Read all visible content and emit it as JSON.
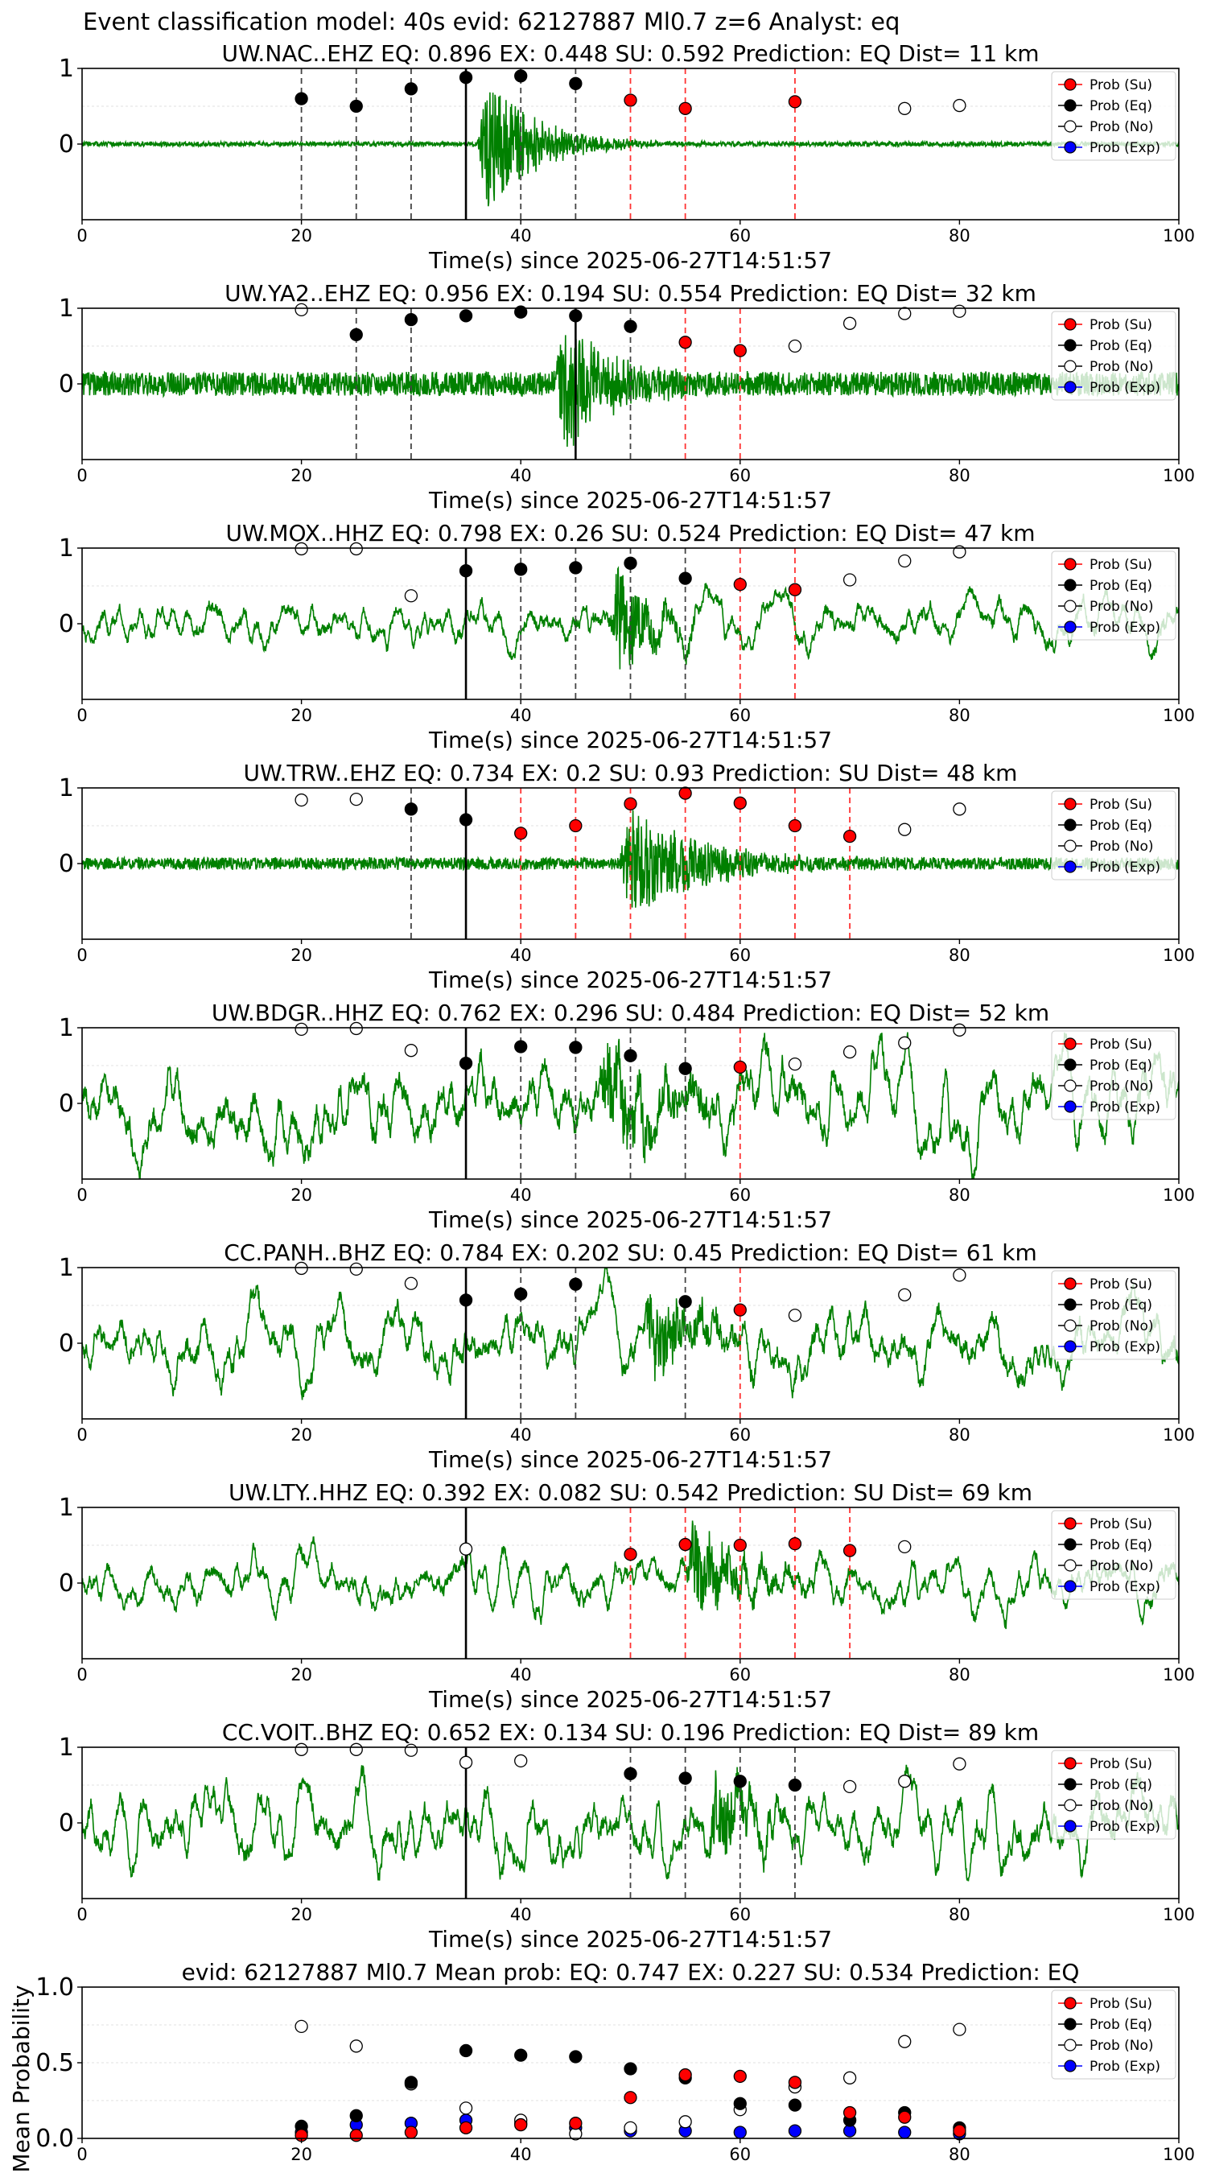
{
  "figure": {
    "suptitle": "Event classification model: 40s evid: 62127887 Ml0.7 z=6 Analyst: eq"
  },
  "legend": {
    "su": "Prob (Su)",
    "eq": "Prob (Eq)",
    "no": "Prob (No)",
    "exp": "Prob (Exp)"
  },
  "colors": {
    "su": "#ff0000",
    "eq": "#000000",
    "no": "#ffffff",
    "exp": "#0000ff",
    "waveform": "#008000",
    "origin_line": "#000000",
    "eq_window_line": "#444444",
    "su_window_line": "#ff3333"
  },
  "chart_data": [
    {
      "type": "line",
      "title": "UW.NAC..EHZ   EQ: 0.896  EX: 0.448  SU: 0.592   Prediction: EQ    Dist= 11 km",
      "xlabel": "Time(s) since 2025-06-27T14:51:57",
      "xlim": [
        0,
        100
      ],
      "ylim": [
        -1,
        1
      ],
      "x_ticks": [
        "0",
        "20",
        "40",
        "60",
        "80",
        "100"
      ],
      "y_ticks": [
        "0",
        "1"
      ],
      "legend_position": "upper right",
      "origin_time": 35,
      "waveform": {
        "noise": 0.015,
        "events": [
          {
            "t": 37,
            "amp": 0.9,
            "dur": 10,
            "seed": 1
          }
        ]
      },
      "eq_lines": [
        20,
        25,
        30,
        40,
        45
      ],
      "su_lines": [
        50,
        55,
        65
      ],
      "su_points": [
        [
          50,
          0.58
        ],
        [
          55,
          0.47
        ],
        [
          65,
          0.56
        ]
      ],
      "eq_points": [
        [
          20,
          0.6
        ],
        [
          25,
          0.5
        ],
        [
          30,
          0.73
        ],
        [
          35,
          0.88
        ],
        [
          40,
          0.9
        ],
        [
          45,
          0.8
        ]
      ],
      "no_points": [
        [
          75,
          0.47
        ],
        [
          80,
          0.51
        ]
      ],
      "exp_points": []
    },
    {
      "type": "line",
      "title": "UW.YA2..EHZ   EQ: 0.956  EX: 0.194  SU: 0.554   Prediction: EQ    Dist= 32 km",
      "xlabel": "Time(s) since 2025-06-27T14:51:57",
      "xlim": [
        0,
        100
      ],
      "ylim": [
        -1,
        1
      ],
      "x_ticks": [
        "0",
        "20",
        "40",
        "60",
        "80",
        "100"
      ],
      "y_ticks": [
        "0",
        "1"
      ],
      "legend_position": "upper right",
      "origin_time": 45,
      "waveform": {
        "noise": 0.08,
        "events": [
          {
            "t": 44,
            "amp": 0.85,
            "dur": 9,
            "seed": 2
          }
        ]
      },
      "eq_lines": [
        25,
        30,
        45,
        50
      ],
      "su_lines": [
        55,
        60
      ],
      "su_points": [
        [
          55,
          0.55
        ],
        [
          60,
          0.44
        ]
      ],
      "eq_points": [
        [
          25,
          0.65
        ],
        [
          30,
          0.85
        ],
        [
          35,
          0.9
        ],
        [
          40,
          0.95
        ],
        [
          45,
          0.9
        ],
        [
          50,
          0.76
        ]
      ],
      "no_points": [
        [
          20,
          0.98
        ],
        [
          65,
          0.5
        ],
        [
          70,
          0.8
        ],
        [
          75,
          0.93
        ],
        [
          80,
          0.96
        ]
      ],
      "exp_points": []
    },
    {
      "type": "line",
      "title": "UW.MOX..HHZ   EQ: 0.798  EX: 0.26  SU: 0.524   Prediction: EQ    Dist= 47 km",
      "xlabel": "Time(s) since 2025-06-27T14:51:57",
      "xlim": [
        0,
        100
      ],
      "ylim": [
        -1,
        1
      ],
      "x_ticks": [
        "0",
        "20",
        "40",
        "60",
        "80",
        "100"
      ],
      "y_ticks": [
        "0",
        "1"
      ],
      "legend_position": "upper right",
      "origin_time": 35,
      "waveform": {
        "noise": 0.2,
        "events": [
          {
            "t": 49,
            "amp": 0.7,
            "dur": 6,
            "seed": 3
          }
        ]
      },
      "eq_lines": [
        40,
        45,
        50,
        55
      ],
      "su_lines": [
        60,
        65
      ],
      "su_points": [
        [
          60,
          0.52
        ],
        [
          65,
          0.45
        ]
      ],
      "eq_points": [
        [
          35,
          0.7
        ],
        [
          40,
          0.72
        ],
        [
          45,
          0.74
        ],
        [
          50,
          0.8
        ],
        [
          55,
          0.6
        ]
      ],
      "no_points": [
        [
          20,
          0.99
        ],
        [
          25,
          0.99
        ],
        [
          30,
          0.37
        ],
        [
          70,
          0.58
        ],
        [
          75,
          0.83
        ],
        [
          80,
          0.95
        ]
      ],
      "exp_points": []
    },
    {
      "type": "line",
      "title": "UW.TRW..EHZ   EQ: 0.734  EX: 0.2  SU: 0.93   Prediction: SU    Dist= 48 km",
      "xlabel": "Time(s) since 2025-06-27T14:51:57",
      "xlim": [
        0,
        100
      ],
      "ylim": [
        -1,
        1
      ],
      "x_ticks": [
        "0",
        "20",
        "40",
        "60",
        "80",
        "100"
      ],
      "y_ticks": [
        "0",
        "1"
      ],
      "legend_position": "upper right",
      "origin_time": 35,
      "waveform": {
        "noise": 0.04,
        "events": [
          {
            "t": 50,
            "amp": 0.75,
            "dur": 14,
            "seed": 4
          }
        ]
      },
      "eq_lines": [
        30
      ],
      "su_lines": [
        40,
        45,
        50,
        55,
        60,
        65,
        70
      ],
      "su_points": [
        [
          40,
          0.4
        ],
        [
          45,
          0.5
        ],
        [
          50,
          0.79
        ],
        [
          55,
          0.93
        ],
        [
          60,
          0.8
        ],
        [
          65,
          0.5
        ],
        [
          70,
          0.36
        ]
      ],
      "eq_points": [
        [
          30,
          0.72
        ],
        [
          35,
          0.58
        ]
      ],
      "no_points": [
        [
          20,
          0.84
        ],
        [
          25,
          0.85
        ],
        [
          75,
          0.45
        ],
        [
          80,
          0.72
        ]
      ],
      "exp_points": []
    },
    {
      "type": "line",
      "title": "UW.BDGR..HHZ   EQ: 0.762  EX: 0.296  SU: 0.484   Prediction: EQ    Dist= 52 km",
      "xlabel": "Time(s) since 2025-06-27T14:51:57",
      "xlim": [
        0,
        100
      ],
      "ylim": [
        -1,
        1
      ],
      "x_ticks": [
        "0",
        "20",
        "40",
        "60",
        "80",
        "100"
      ],
      "y_ticks": [
        "0",
        "1"
      ],
      "legend_position": "upper right",
      "origin_time": 35,
      "waveform": {
        "noise": 0.35,
        "events": [
          {
            "t": 48,
            "amp": 0.5,
            "dur": 12,
            "seed": 5
          }
        ]
      },
      "eq_lines": [
        40,
        45,
        50,
        55
      ],
      "su_lines": [
        60
      ],
      "su_points": [
        [
          60,
          0.48
        ]
      ],
      "eq_points": [
        [
          35,
          0.53
        ],
        [
          40,
          0.75
        ],
        [
          45,
          0.74
        ],
        [
          50,
          0.63
        ],
        [
          55,
          0.46
        ]
      ],
      "no_points": [
        [
          20,
          0.98
        ],
        [
          25,
          0.99
        ],
        [
          30,
          0.7
        ],
        [
          65,
          0.52
        ],
        [
          70,
          0.68
        ],
        [
          75,
          0.8
        ],
        [
          80,
          0.97
        ]
      ],
      "exp_points": []
    },
    {
      "type": "line",
      "title": "CC.PANH..BHZ   EQ: 0.784  EX: 0.202  SU: 0.45   Prediction: EQ    Dist= 61 km",
      "xlabel": "Time(s) since 2025-06-27T14:51:57",
      "xlim": [
        0,
        100
      ],
      "ylim": [
        -1,
        1
      ],
      "x_ticks": [
        "0",
        "20",
        "40",
        "60",
        "80",
        "100"
      ],
      "y_ticks": [
        "0",
        "1"
      ],
      "legend_position": "upper right",
      "origin_time": 35,
      "waveform": {
        "noise": 0.28,
        "events": [
          {
            "t": 52,
            "amp": 0.55,
            "dur": 8,
            "seed": 6
          }
        ]
      },
      "eq_lines": [
        40,
        45,
        55
      ],
      "su_lines": [
        60
      ],
      "su_points": [
        [
          60,
          0.44
        ]
      ],
      "eq_points": [
        [
          35,
          0.57
        ],
        [
          40,
          0.65
        ],
        [
          45,
          0.78
        ],
        [
          55,
          0.55
        ]
      ],
      "no_points": [
        [
          20,
          0.99
        ],
        [
          25,
          0.98
        ],
        [
          30,
          0.79
        ],
        [
          65,
          0.37
        ],
        [
          75,
          0.64
        ],
        [
          80,
          0.9
        ]
      ],
      "exp_points": []
    },
    {
      "type": "line",
      "title": "UW.LTY..HHZ   EQ: 0.392  EX: 0.082  SU: 0.542   Prediction: SU    Dist= 69 km",
      "xlabel": "Time(s) since 2025-06-27T14:51:57",
      "xlim": [
        0,
        100
      ],
      "ylim": [
        -1,
        1
      ],
      "x_ticks": [
        "0",
        "20",
        "40",
        "60",
        "80",
        "100"
      ],
      "y_ticks": [
        "0",
        "1"
      ],
      "legend_position": "upper right",
      "origin_time": 35,
      "waveform": {
        "noise": 0.22,
        "events": [
          {
            "t": 56,
            "amp": 0.6,
            "dur": 8,
            "seed": 7
          }
        ]
      },
      "eq_lines": [],
      "su_lines": [
        50,
        55,
        60,
        65,
        70
      ],
      "su_points": [
        [
          50,
          0.38
        ],
        [
          55,
          0.51
        ],
        [
          60,
          0.5
        ],
        [
          65,
          0.52
        ],
        [
          70,
          0.43
        ]
      ],
      "eq_points": [],
      "no_points": [
        [
          35,
          0.45
        ],
        [
          75,
          0.48
        ]
      ],
      "exp_points": []
    },
    {
      "type": "line",
      "title": "CC.VOIT..BHZ   EQ: 0.652  EX: 0.134  SU: 0.196   Prediction: EQ    Dist= 89 km",
      "xlabel": "Time(s) since 2025-06-27T14:51:57",
      "xlim": [
        0,
        100
      ],
      "ylim": [
        -1,
        1
      ],
      "x_ticks": [
        "0",
        "20",
        "40",
        "60",
        "80",
        "100"
      ],
      "y_ticks": [
        "0",
        "1"
      ],
      "legend_position": "upper right",
      "origin_time": 35,
      "waveform": {
        "noise": 0.3,
        "events": [
          {
            "t": 58,
            "amp": 0.55,
            "dur": 6,
            "seed": 8
          }
        ]
      },
      "eq_lines": [
        50,
        55,
        60,
        65
      ],
      "su_lines": [],
      "su_points": [],
      "eq_points": [
        [
          50,
          0.65
        ],
        [
          55,
          0.59
        ],
        [
          60,
          0.55
        ],
        [
          65,
          0.5
        ]
      ],
      "no_points": [
        [
          20,
          0.97
        ],
        [
          25,
          0.97
        ],
        [
          30,
          0.96
        ],
        [
          35,
          0.8
        ],
        [
          40,
          0.82
        ],
        [
          70,
          0.48
        ],
        [
          75,
          0.55
        ],
        [
          80,
          0.78
        ]
      ],
      "exp_points": []
    },
    {
      "type": "scatter",
      "title": "evid: 62127887  Ml0.7   Mean prob:   EQ: 0.747  EX: 0.227  SU: 0.534   Prediction: EQ",
      "xlabel": "",
      "ylabel": "Mean Probability",
      "xlim": [
        0,
        100
      ],
      "ylim": [
        0,
        1
      ],
      "x_ticks": [
        "0",
        "20",
        "40",
        "60",
        "80",
        "100"
      ],
      "y_ticks": [
        "0.0",
        "0.5",
        "1.0"
      ],
      "legend_position": "upper right",
      "su_points": [
        [
          20,
          0.02
        ],
        [
          25,
          0.02
        ],
        [
          30,
          0.04
        ],
        [
          35,
          0.07
        ],
        [
          40,
          0.09
        ],
        [
          45,
          0.1
        ],
        [
          50,
          0.27
        ],
        [
          55,
          0.42
        ],
        [
          60,
          0.41
        ],
        [
          65,
          0.37
        ],
        [
          70,
          0.17
        ],
        [
          75,
          0.14
        ],
        [
          80,
          0.05
        ]
      ],
      "eq_points": [
        [
          20,
          0.08
        ],
        [
          25,
          0.15
        ],
        [
          30,
          0.37
        ],
        [
          35,
          0.58
        ],
        [
          40,
          0.55
        ],
        [
          45,
          0.54
        ],
        [
          50,
          0.46
        ],
        [
          55,
          0.4
        ],
        [
          60,
          0.23
        ],
        [
          65,
          0.22
        ],
        [
          70,
          0.12
        ],
        [
          75,
          0.17
        ],
        [
          80,
          0.07
        ]
      ],
      "no_points": [
        [
          20,
          0.74
        ],
        [
          25,
          0.61
        ],
        [
          30,
          0.36
        ],
        [
          35,
          0.2
        ],
        [
          40,
          0.12
        ],
        [
          45,
          0.03
        ],
        [
          50,
          0.07
        ],
        [
          55,
          0.11
        ],
        [
          60,
          0.19
        ],
        [
          65,
          0.34
        ],
        [
          70,
          0.4
        ],
        [
          75,
          0.64
        ],
        [
          80,
          0.72
        ]
      ],
      "exp_points": [
        [
          20,
          0.04
        ],
        [
          25,
          0.09
        ],
        [
          30,
          0.1
        ],
        [
          35,
          0.12
        ],
        [
          40,
          0.1
        ],
        [
          45,
          0.07
        ],
        [
          50,
          0.05
        ],
        [
          55,
          0.05
        ],
        [
          60,
          0.04
        ],
        [
          65,
          0.05
        ],
        [
          70,
          0.05
        ],
        [
          75,
          0.04
        ],
        [
          80,
          0.03
        ]
      ]
    }
  ]
}
